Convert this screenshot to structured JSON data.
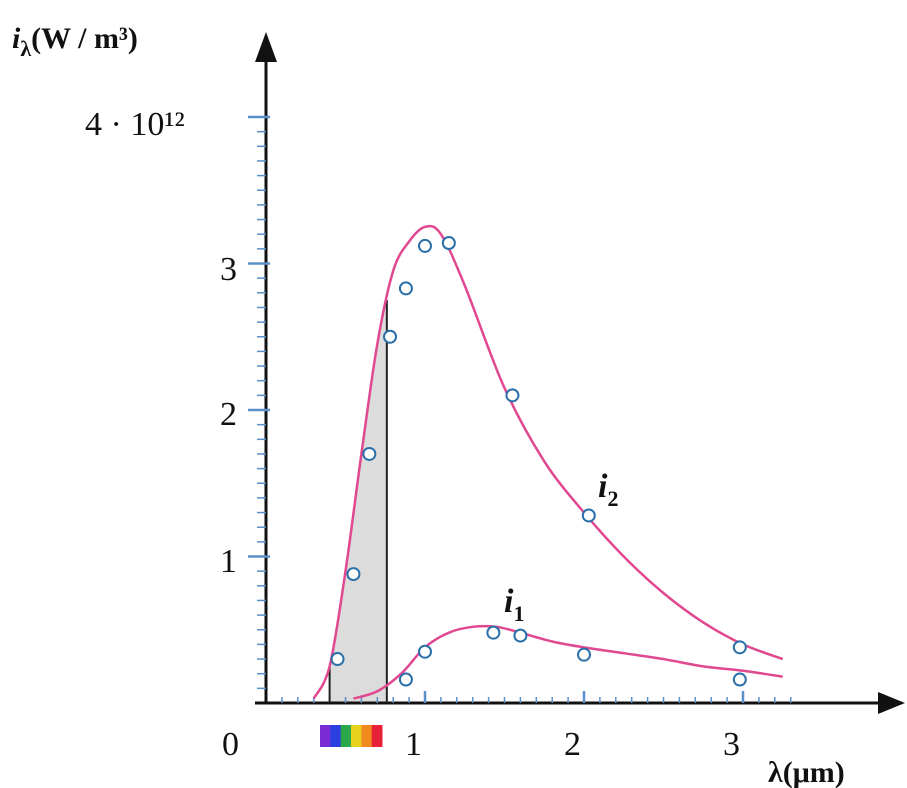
{
  "chart_data": {
    "type": "line",
    "ylabel": {
      "symbol": "i",
      "subscript": "λ",
      "unit": "(W / m³)"
    },
    "xlabel": "λ(μm)",
    "origin_label": "0",
    "xlim": [
      0,
      3.4
    ],
    "ylim": [
      0,
      4
    ],
    "y_scale_label": "4 · 10¹²",
    "x_ticks": [
      "1",
      "2",
      "3"
    ],
    "y_ticks": [
      "1",
      "2",
      "3"
    ],
    "visible_band": [
      0.4,
      0.76
    ],
    "colors": {
      "curve": "#e0488f",
      "axis": "#111111",
      "tick": "#5b8fc9",
      "shade": "#dcdcdc",
      "marker": "#2a6fa8"
    },
    "visible_spectrum_colors": [
      "#7a2bd6",
      "#2b3fe0",
      "#2aa84a",
      "#e8d21e",
      "#f28a1e",
      "#e8203a"
    ],
    "series": [
      {
        "name": "i₂",
        "curve": [
          [
            0.3,
            0.03
          ],
          [
            0.4,
            0.25
          ],
          [
            0.5,
            0.9
          ],
          [
            0.6,
            1.7
          ],
          [
            0.7,
            2.45
          ],
          [
            0.8,
            2.95
          ],
          [
            0.9,
            3.15
          ],
          [
            1.0,
            3.25
          ],
          [
            1.1,
            3.2
          ],
          [
            1.25,
            2.85
          ],
          [
            1.5,
            2.15
          ],
          [
            1.75,
            1.65
          ],
          [
            2.0,
            1.3
          ],
          [
            2.25,
            1.0
          ],
          [
            2.5,
            0.75
          ],
          [
            2.75,
            0.55
          ],
          [
            3.0,
            0.4
          ],
          [
            3.25,
            0.3
          ]
        ],
        "points": [
          [
            0.45,
            0.3
          ],
          [
            0.55,
            0.88
          ],
          [
            0.65,
            1.7
          ],
          [
            0.78,
            2.5
          ],
          [
            0.88,
            2.83
          ],
          [
            1.0,
            3.12
          ],
          [
            1.15,
            3.14
          ],
          [
            1.55,
            2.1
          ],
          [
            2.03,
            1.28
          ],
          [
            2.98,
            0.38
          ]
        ]
      },
      {
        "name": "i₁",
        "curve": [
          [
            0.55,
            0.03
          ],
          [
            0.7,
            0.08
          ],
          [
            0.85,
            0.2
          ],
          [
            1.0,
            0.38
          ],
          [
            1.15,
            0.48
          ],
          [
            1.3,
            0.52
          ],
          [
            1.45,
            0.52
          ],
          [
            1.6,
            0.48
          ],
          [
            1.8,
            0.42
          ],
          [
            2.0,
            0.38
          ],
          [
            2.25,
            0.34
          ],
          [
            2.5,
            0.3
          ],
          [
            2.75,
            0.25
          ],
          [
            3.0,
            0.22
          ],
          [
            3.25,
            0.18
          ]
        ],
        "points": [
          [
            0.88,
            0.16
          ],
          [
            1.0,
            0.35
          ],
          [
            1.43,
            0.48
          ],
          [
            1.6,
            0.46
          ],
          [
            2.0,
            0.33
          ],
          [
            2.98,
            0.16
          ]
        ]
      }
    ]
  }
}
